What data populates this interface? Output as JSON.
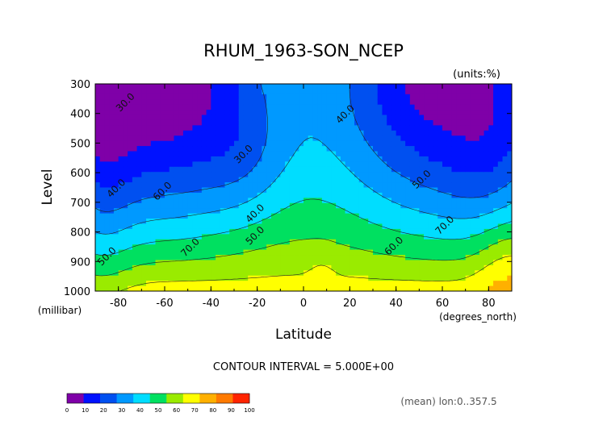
{
  "chart_data": {
    "type": "heatmap",
    "title": "RHUM_1963-SON_NCEP",
    "units_label": "(units:%)",
    "xlabel": "Latitude",
    "ylabel": "Level",
    "x_unit_label": "(degrees_north)",
    "y_unit_label": "(millibar)",
    "xlim": [
      -90,
      90
    ],
    "ylim": [
      1000,
      300
    ],
    "x_ticks": [
      -80,
      -60,
      -40,
      -20,
      0,
      20,
      40,
      60,
      80
    ],
    "x_tick_labels": [
      "-80",
      "-60",
      "-40",
      "-20",
      "0",
      "20",
      "40",
      "60",
      "80"
    ],
    "y_ticks": [
      300,
      400,
      500,
      600,
      700,
      800,
      900,
      1000
    ],
    "y_tick_labels": [
      "300",
      "400",
      "500",
      "600",
      "700",
      "800",
      "900",
      "1000"
    ],
    "contour_interval_text": "CONTOUR INTERVAL = 5.000E+00",
    "region_text": "(mean) lon:0..357.5",
    "colorbar": {
      "levels": [
        0,
        10,
        20,
        30,
        40,
        50,
        60,
        70,
        80,
        90,
        100
      ],
      "labels": [
        "0",
        "10",
        "20",
        "30",
        "40",
        "50",
        "60",
        "70",
        "80",
        "90",
        "100"
      ],
      "colors": [
        "#7f00a8",
        "#0012ff",
        "#0050f0",
        "#0099ff",
        "#00ddff",
        "#00e060",
        "#9aeb00",
        "#ffff00",
        "#ffb000",
        "#ff7a00",
        "#ff2400"
      ]
    },
    "contour_labels": [
      {
        "text": "30.0",
        "lat": -76,
        "p": 370
      },
      {
        "text": "30.0",
        "lat": -25,
        "p": 545
      },
      {
        "text": "40.0",
        "lat": 19,
        "p": 410
      },
      {
        "text": "40.0",
        "lat": -20,
        "p": 745
      },
      {
        "text": "40.0",
        "lat": -80,
        "p": 660
      },
      {
        "text": "50.0",
        "lat": -20,
        "p": 820
      },
      {
        "text": "50.0",
        "lat": 52,
        "p": 630
      },
      {
        "text": "50.0",
        "lat": -84,
        "p": 890
      },
      {
        "text": "60.0",
        "lat": -60,
        "p": 670
      },
      {
        "text": "60.0",
        "lat": 40,
        "p": 855
      },
      {
        "text": "70.0",
        "lat": -48,
        "p": 860
      },
      {
        "text": "70.0",
        "lat": 62,
        "p": 785
      }
    ],
    "contour_values": [
      30,
      40,
      50,
      60,
      70
    ],
    "grid": false
  }
}
